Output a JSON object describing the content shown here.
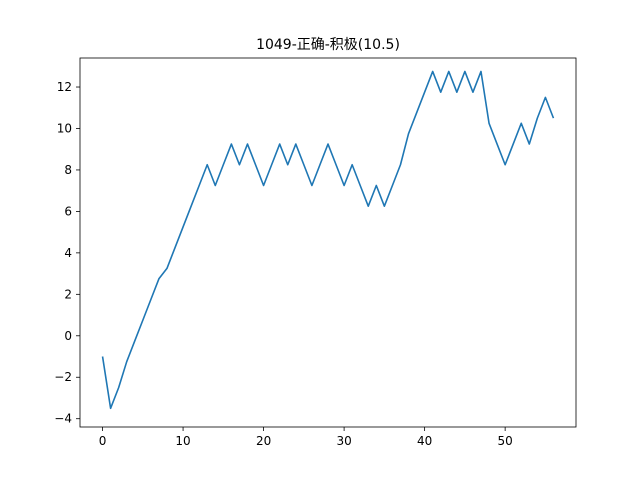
{
  "chart_data": {
    "type": "line",
    "title": "1049-正确-积极(10.5)",
    "xlabel": "",
    "ylabel": "",
    "xlim": [
      -2.8,
      58.8
    ],
    "ylim": [
      -4.4,
      13.4
    ],
    "xticks": [
      0,
      10,
      20,
      30,
      40,
      50
    ],
    "yticks": [
      -4,
      -2,
      0,
      2,
      4,
      6,
      8,
      10,
      12
    ],
    "grid": false,
    "legend": null,
    "series": [
      {
        "color": "#1f77b4",
        "x": [
          0,
          1,
          2,
          3,
          4,
          5,
          6,
          7,
          8,
          9,
          10,
          11,
          12,
          13,
          14,
          15,
          16,
          17,
          18,
          19,
          20,
          21,
          22,
          23,
          24,
          25,
          26,
          27,
          28,
          29,
          30,
          31,
          32,
          33,
          34,
          35,
          36,
          37,
          38,
          39,
          40,
          41,
          42,
          43,
          44,
          45,
          46,
          47,
          48,
          49,
          50,
          51,
          52,
          53,
          54,
          55,
          56
        ],
        "y": [
          -1.0,
          -3.5,
          -2.5,
          -1.25,
          -0.25,
          0.75,
          1.75,
          2.75,
          3.25,
          4.25,
          5.25,
          6.25,
          7.25,
          8.25,
          7.25,
          8.25,
          9.25,
          8.25,
          9.25,
          8.25,
          7.25,
          8.25,
          9.25,
          8.25,
          9.25,
          8.25,
          7.25,
          8.25,
          9.25,
          8.25,
          7.25,
          8.25,
          7.25,
          6.25,
          7.25,
          6.25,
          7.25,
          8.25,
          9.75,
          10.75,
          11.75,
          12.75,
          11.75,
          12.75,
          11.75,
          12.75,
          11.75,
          12.75,
          10.25,
          9.25,
          8.25,
          9.25,
          10.25,
          9.25,
          10.5,
          11.5,
          10.5
        ]
      }
    ]
  }
}
